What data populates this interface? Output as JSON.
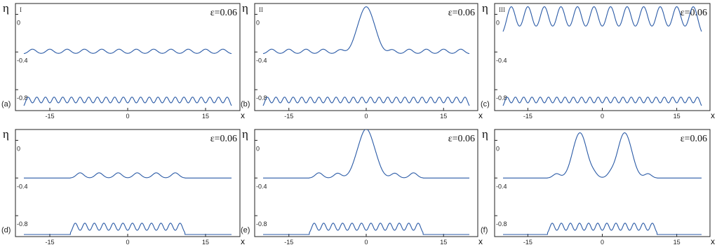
{
  "figure": {
    "accent_color": "#2a5aa6",
    "axis_color": "#222222",
    "panels": [
      {
        "id": "a",
        "label": "(a)",
        "roman": "I",
        "eps_label": "ε=0.06",
        "ylabel": "η",
        "xlabel": "x",
        "yticks": [
          "0",
          "-0.4",
          "-0.8"
        ],
        "xticks": [
          "-15",
          "0",
          "15"
        ]
      },
      {
        "id": "b",
        "label": "(b)",
        "roman": "II",
        "eps_label": "ε=0.06",
        "ylabel": "η",
        "xlabel": "x",
        "yticks": [
          "0",
          "-0.4",
          "-0.8"
        ],
        "xticks": [
          "-15",
          "0",
          "15"
        ]
      },
      {
        "id": "c",
        "label": "(c)",
        "roman": "III",
        "eps_label": "ε=0.06",
        "ylabel": "η",
        "xlabel": "x",
        "yticks": [
          "0",
          "-0.4",
          "-0.8"
        ],
        "xticks": [
          "-15",
          "0",
          "15"
        ]
      },
      {
        "id": "d",
        "label": "(d)",
        "roman": "",
        "eps_label": "ε=0.06",
        "ylabel": "η",
        "xlabel": "x",
        "yticks": [
          "0",
          "-0.4",
          "-0.8"
        ],
        "xticks": [
          "-15",
          "0",
          "15"
        ]
      },
      {
        "id": "e",
        "label": "(e)",
        "roman": "",
        "eps_label": "ε=0.06",
        "ylabel": "η",
        "xlabel": "x",
        "yticks": [
          "0",
          "-0.4",
          "-0.8"
        ],
        "xticks": [
          "-15",
          "0",
          "15"
        ]
      },
      {
        "id": "f",
        "label": "(f)",
        "roman": "",
        "eps_label": "ε=0.06",
        "ylabel": "η",
        "xlabel": "x",
        "yticks": [
          "0",
          "-0.4",
          "-0.8"
        ],
        "xticks": [
          "-15",
          "0",
          "15"
        ]
      }
    ]
  },
  "chart_data": [
    {
      "type": "line",
      "panel": "a",
      "xlim": [
        -20,
        20
      ],
      "ylim": [
        -1.0,
        0.1
      ],
      "series": [
        {
          "kind": "periodic",
          "base": -0.42,
          "amp": 0.05,
          "peaks": 12,
          "width": 0.7
        },
        {
          "kind": "periodic",
          "base": -1.0,
          "amp": 0.12,
          "peaks": 24,
          "width": 0.5
        }
      ]
    },
    {
      "type": "line",
      "panel": "b",
      "xlim": [
        -20,
        20
      ],
      "ylim": [
        -1.0,
        0.1
      ],
      "series": [
        {
          "kind": "periodic_soliton",
          "base": -0.42,
          "amp": 0.05,
          "peaks": 12,
          "width": 0.7,
          "soliton_amp": 0.5,
          "soliton_center": 0,
          "soliton_width": 1.6
        },
        {
          "kind": "periodic",
          "base": -1.0,
          "amp": 0.12,
          "peaks": 24,
          "width": 0.5
        }
      ]
    },
    {
      "type": "line",
      "panel": "c",
      "xlim": [
        -20,
        20
      ],
      "ylim": [
        -1.0,
        0.1
      ],
      "series": [
        {
          "kind": "periodic",
          "base": -0.24,
          "amp": 0.32,
          "peaks": 12,
          "width": 0.9
        },
        {
          "kind": "periodic",
          "base": -1.0,
          "amp": 0.12,
          "peaks": 24,
          "width": 0.5
        }
      ]
    },
    {
      "type": "line",
      "panel": "d",
      "xlim": [
        -20,
        20
      ],
      "ylim": [
        -1.0,
        0.1
      ],
      "series": [
        {
          "kind": "localized",
          "base": -0.4,
          "amp": 0.055,
          "peaks": 6,
          "width": 0.7,
          "extent": 11
        },
        {
          "kind": "localized",
          "base": -1.0,
          "amp": 0.12,
          "peaks": 12,
          "width": 0.5,
          "extent": 11
        }
      ]
    },
    {
      "type": "line",
      "panel": "e",
      "xlim": [
        -20,
        20
      ],
      "ylim": [
        -1.0,
        0.1
      ],
      "series": [
        {
          "kind": "localized_soliton",
          "base": -0.4,
          "amp": 0.055,
          "peaks": 6,
          "width": 0.7,
          "extent": 11,
          "soliton_amp": 0.52,
          "soliton_center": 0,
          "soliton_width": 1.6
        },
        {
          "kind": "localized",
          "base": -1.0,
          "amp": 0.12,
          "peaks": 12,
          "width": 0.5,
          "extent": 11
        }
      ]
    },
    {
      "type": "line",
      "panel": "f",
      "xlim": [
        -20,
        20
      ],
      "ylim": [
        -1.0,
        0.1
      ],
      "series": [
        {
          "kind": "localized_double",
          "base": -0.4,
          "amp": 0.05,
          "peaks": 6,
          "width": 0.7,
          "extent": 11,
          "soliton_amp": 0.48,
          "soliton_centers": [
            -4.5,
            4.5
          ],
          "soliton_width": 1.4
        },
        {
          "kind": "localized",
          "base": -1.0,
          "amp": 0.12,
          "peaks": 12,
          "width": 0.5,
          "extent": 11
        }
      ]
    }
  ]
}
